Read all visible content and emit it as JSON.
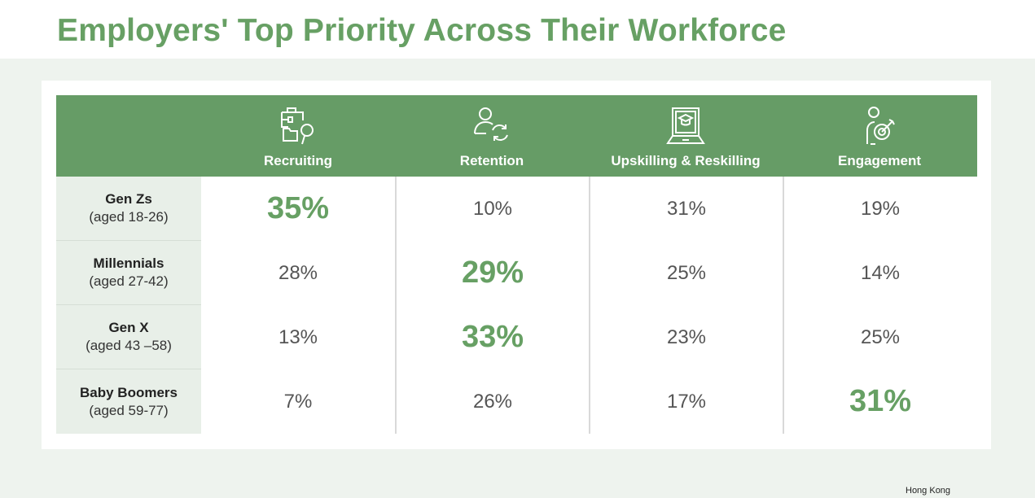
{
  "title": "Employers' Top Priority Across Their Workforce",
  "columns": [
    {
      "label": "Recruiting",
      "icon": "briefcase-search-icon"
    },
    {
      "label": "Retention",
      "icon": "person-refresh-icon"
    },
    {
      "label": "Upskilling & Reskilling",
      "icon": "laptop-graduation-icon"
    },
    {
      "label": "Engagement",
      "icon": "person-target-icon"
    }
  ],
  "rows": [
    {
      "name": "Gen Zs",
      "age": "(aged 18-26)",
      "values": [
        "35%",
        "10%",
        "31%",
        "19%"
      ],
      "highlight": 0
    },
    {
      "name": "Millennials",
      "age": "(aged 27-42)",
      "values": [
        "28%",
        "29%",
        "25%",
        "14%"
      ],
      "highlight": 1
    },
    {
      "name": "Gen X",
      "age": "(aged 43 –58)",
      "values": [
        "13%",
        "33%",
        "23%",
        "25%"
      ],
      "highlight": 1
    },
    {
      "name": "Baby Boomers",
      "age": "(aged 59-77)",
      "values": [
        "7%",
        "26%",
        "17%",
        "31%"
      ],
      "highlight": 3
    }
  ],
  "footer": "Hong Kong",
  "colors": {
    "accent": "#669c66",
    "highlight_text": "#67a064",
    "row_label_bg": "#e8efe8"
  }
}
